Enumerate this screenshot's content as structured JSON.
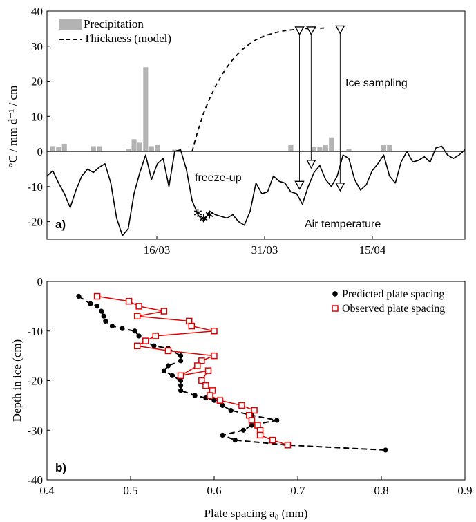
{
  "panel_a": {
    "label": "a)",
    "ylabel": "°C / mm d⁻¹ / cm",
    "ylim": [
      -25,
      40
    ],
    "yticks": [
      -20,
      -10,
      0,
      10,
      20,
      30,
      40
    ],
    "xlim": [
      1,
      60
    ],
    "xticks": [
      {
        "x": 16,
        "label": "16/03"
      },
      {
        "x": 31,
        "label": "31/03"
      },
      {
        "x": 46,
        "label": "15/04"
      }
    ],
    "legend": [
      {
        "label": "Precipitation",
        "kind": "bar",
        "color": "#b3b3b3"
      },
      {
        "label": "Thickness (model)",
        "kind": "dashed-line",
        "color": "#000000"
      }
    ],
    "annotations": {
      "freeze_up": "freeze-up",
      "ice_sampling": "Ice sampling",
      "air_temperature": "Air temperature"
    }
  },
  "panel_b": {
    "label": "b)",
    "xlabel": "Plate spacing a₀ (mm)",
    "ylabel": "Depth in ice (cm)",
    "xlim": [
      0.4,
      0.9
    ],
    "ylim": [
      -40,
      0
    ],
    "xticks": [
      0.4,
      0.5,
      0.6,
      0.7,
      0.8,
      0.9
    ],
    "yticks": [
      0,
      -10,
      -20,
      -30,
      -40
    ],
    "legend": [
      {
        "label": "Predicted plate spacing",
        "kind": "dot-dashed",
        "color": "#000000"
      },
      {
        "label": "Observed plate spacing",
        "kind": "square-line",
        "color": "#e00000"
      }
    ]
  },
  "chart_data": [
    {
      "type": "line",
      "panel": "a",
      "x_axis": "date",
      "series": [
        {
          "name": "Air temperature",
          "kind": "line",
          "points": [
            [
              1,
              -7
            ],
            [
              2,
              -5.5
            ],
            [
              3,
              -9
            ],
            [
              4,
              -12
            ],
            [
              5,
              -16
            ],
            [
              6,
              -11
            ],
            [
              7,
              -7
            ],
            [
              8,
              -5
            ],
            [
              9,
              -6
            ],
            [
              10,
              -4.5
            ],
            [
              11,
              -3.5
            ],
            [
              12,
              -9
            ],
            [
              13,
              -19
            ],
            [
              14,
              -24
            ],
            [
              15,
              -22
            ],
            [
              16,
              -12
            ],
            [
              17,
              -6
            ],
            [
              18,
              -1
            ],
            [
              19,
              -8
            ],
            [
              20,
              -3.5
            ],
            [
              21,
              -2
            ],
            [
              22,
              -10
            ],
            [
              23,
              0
            ],
            [
              24,
              0.5
            ],
            [
              25,
              -5
            ],
            [
              26,
              -14
            ],
            [
              27,
              -18
            ],
            [
              28,
              -20
            ],
            [
              29,
              -17
            ],
            [
              30,
              -18
            ],
            [
              31,
              -18.5
            ],
            [
              32,
              -19
            ],
            [
              33,
              -18
            ],
            [
              34,
              -20
            ],
            [
              35,
              -21
            ],
            [
              36,
              -17
            ],
            [
              37,
              -9
            ],
            [
              38,
              -12
            ],
            [
              39,
              -11.5
            ],
            [
              40,
              -7
            ],
            [
              41,
              -8.5
            ],
            [
              42,
              -9
            ],
            [
              43,
              -11.5
            ],
            [
              44,
              -12
            ],
            [
              45,
              -15
            ],
            [
              46,
              -10
            ],
            [
              47,
              -6
            ],
            [
              48,
              -4
            ],
            [
              49,
              -8
            ],
            [
              50,
              -10
            ],
            [
              51,
              -7
            ],
            [
              52,
              -1
            ],
            [
              53,
              -2
            ],
            [
              54,
              -8
            ],
            [
              55,
              -11
            ],
            [
              56,
              -9.5
            ],
            [
              57,
              -5.5
            ],
            [
              58,
              -3.5
            ],
            [
              59,
              -1
            ],
            [
              60,
              -7
            ],
            [
              61,
              -9
            ],
            [
              62,
              -3
            ],
            [
              63,
              0
            ],
            [
              64,
              -3
            ],
            [
              65,
              -2.5
            ],
            [
              66,
              -1.5
            ],
            [
              67,
              -3
            ],
            [
              68,
              1
            ],
            [
              69,
              1.5
            ],
            [
              70,
              -1
            ],
            [
              71,
              -2
            ],
            [
              72,
              -1
            ],
            [
              73,
              0.5
            ]
          ],
          "x_range_used": [
            1,
            73
          ]
        },
        {
          "name": "Precipitation",
          "kind": "bar",
          "points": [
            [
              2,
              1.5
            ],
            [
              3,
              1.2
            ],
            [
              4,
              2.2
            ],
            [
              9,
              1.5
            ],
            [
              10,
              1.5
            ],
            [
              15,
              0.8
            ],
            [
              16,
              3.5
            ],
            [
              17,
              2.5
            ],
            [
              18,
              24
            ],
            [
              19,
              1.5
            ],
            [
              20,
              2
            ],
            [
              23,
              0.5
            ],
            [
              43,
              2
            ],
            [
              47,
              1.2
            ],
            [
              48,
              1.2
            ],
            [
              49,
              2
            ],
            [
              50,
              4
            ],
            [
              53,
              0.8
            ],
            [
              59,
              1.8
            ],
            [
              60,
              1.8
            ]
          ]
        },
        {
          "name": "Thickness (model)",
          "kind": "dashed-line",
          "points": [
            [
              26,
              0
            ],
            [
              27,
              6
            ],
            [
              28,
              11
            ],
            [
              29,
              15
            ],
            [
              30,
              18.5
            ],
            [
              31,
              21.5
            ],
            [
              32,
              24
            ],
            [
              33,
              26.2
            ],
            [
              34,
              28
            ],
            [
              35,
              29.5
            ],
            [
              36,
              30.8
            ],
            [
              37,
              31.8
            ],
            [
              38,
              32.6
            ],
            [
              39,
              33.2
            ],
            [
              40,
              33.7
            ],
            [
              41,
              34.1
            ],
            [
              42,
              34.4
            ],
            [
              43,
              34.6
            ],
            [
              44,
              34.8
            ],
            [
              45,
              35
            ],
            [
              46,
              35
            ],
            [
              47,
              35.2
            ],
            [
              48,
              35.1
            ],
            [
              49,
              35.2
            ]
          ]
        },
        {
          "name": "freeze-up",
          "kind": "asterisk",
          "points": [
            [
              27,
              -17.5
            ],
            [
              28,
              -19
            ],
            [
              29,
              -18
            ]
          ]
        },
        {
          "name": "Ice sampling",
          "kind": "triangle",
          "points": [
            [
              44.5,
              -9.5
            ],
            [
              46.5,
              -3.5
            ],
            [
              51.5,
              -10
            ],
            [
              44.5,
              34.5
            ],
            [
              46.5,
              34.5
            ],
            [
              51.5,
              34.8
            ]
          ]
        }
      ]
    },
    {
      "type": "line",
      "panel": "b",
      "series": [
        {
          "name": "Predicted plate spacing",
          "kind": "dot-dashed",
          "points": [
            [
              0.438,
              -3
            ],
            [
              0.452,
              -4.5
            ],
            [
              0.46,
              -5
            ],
            [
              0.465,
              -6
            ],
            [
              0.468,
              -7
            ],
            [
              0.47,
              -8
            ],
            [
              0.478,
              -9
            ],
            [
              0.49,
              -9.5
            ],
            [
              0.505,
              -10
            ],
            [
              0.51,
              -11
            ],
            [
              0.517,
              -12
            ],
            [
              0.528,
              -13
            ],
            [
              0.545,
              -13.5
            ],
            [
              0.56,
              -15
            ],
            [
              0.56,
              -16
            ],
            [
              0.545,
              -17
            ],
            [
              0.54,
              -18
            ],
            [
              0.55,
              -19
            ],
            [
              0.56,
              -20
            ],
            [
              0.56,
              -21
            ],
            [
              0.56,
              -22
            ],
            [
              0.577,
              -23
            ],
            [
              0.59,
              -23.5
            ],
            [
              0.6,
              -24
            ],
            [
              0.61,
              -25
            ],
            [
              0.62,
              -26
            ],
            [
              0.645,
              -27
            ],
            [
              0.675,
              -28
            ],
            [
              0.645,
              -29
            ],
            [
              0.635,
              -30
            ],
            [
              0.61,
              -31
            ],
            [
              0.625,
              -32
            ],
            [
              0.687,
              -33
            ],
            [
              0.805,
              -34
            ]
          ]
        },
        {
          "name": "Observed plate spacing",
          "kind": "square-line",
          "points": [
            [
              0.46,
              -3
            ],
            [
              0.498,
              -4
            ],
            [
              0.51,
              -5
            ],
            [
              0.54,
              -6
            ],
            [
              0.508,
              -7
            ],
            [
              0.57,
              -8
            ],
            [
              0.573,
              -9
            ],
            [
              0.6,
              -10
            ],
            [
              0.53,
              -11
            ],
            [
              0.518,
              -12
            ],
            [
              0.508,
              -13
            ],
            [
              0.545,
              -14
            ],
            [
              0.6,
              -15
            ],
            [
              0.585,
              -16
            ],
            [
              0.58,
              -17
            ],
            [
              0.56,
              -19
            ],
            [
              0.593,
              -18
            ],
            [
              0.585,
              -20
            ],
            [
              0.59,
              -21
            ],
            [
              0.598,
              -22
            ],
            [
              0.595,
              -23
            ],
            [
              0.607,
              -24
            ],
            [
              0.633,
              -25
            ],
            [
              0.648,
              -26
            ],
            [
              0.642,
              -27
            ],
            [
              0.645,
              -28
            ],
            [
              0.652,
              -29
            ],
            [
              0.655,
              -30
            ],
            [
              0.655,
              -31
            ],
            [
              0.67,
              -32
            ],
            [
              0.688,
              -33
            ]
          ]
        }
      ]
    }
  ]
}
